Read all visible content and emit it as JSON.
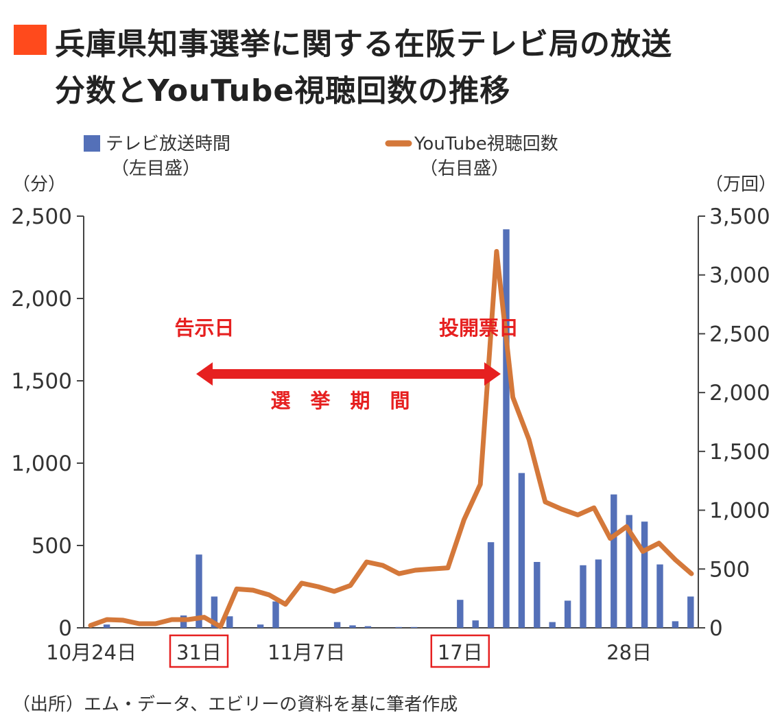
{
  "title_lines": [
    "兵庫県知事選挙に関する在阪テレビ局の放送",
    "分数とYouTube視聴回数の推移"
  ],
  "source": "（出所）エム・データ、エビリーの資料を基に筆者作成",
  "colors": {
    "title_marker": "#ff4a1c",
    "bar": "#5470b8",
    "line": "#d4783a",
    "annotation": "#e62020",
    "axis": "#444444"
  },
  "chart_data": {
    "type": "bar+line",
    "legend": [
      {
        "label": "テレビ放送時間",
        "sub": "（左目盛）",
        "mark": "bar"
      },
      {
        "label": "YouTube視聴回数",
        "sub": "（右目盛）",
        "mark": "line"
      }
    ],
    "left_unit": "（分）",
    "right_unit": "（万回）",
    "left_axis": {
      "min": 0,
      "max": 2500,
      "ticks": [
        0,
        500,
        1000,
        1500,
        2000,
        2500
      ],
      "tick_labels": [
        "0",
        "500",
        "1,000",
        "1,500",
        "2,000",
        "2,500"
      ]
    },
    "right_axis": {
      "min": 0,
      "max": 3500,
      "ticks": [
        0,
        500,
        1000,
        1500,
        2000,
        2500,
        3000,
        3500
      ],
      "tick_labels": [
        "0",
        "500",
        "1,000",
        "1,500",
        "2,000",
        "2,500",
        "3,000",
        "3,500"
      ]
    },
    "x_labels": [
      {
        "index": 0,
        "text": "10月24日",
        "boxed": false
      },
      {
        "index": 7,
        "text": "31日",
        "boxed": true
      },
      {
        "index": 14,
        "text": "11月7日",
        "boxed": false
      },
      {
        "index": 24,
        "text": "17日",
        "boxed": true
      },
      {
        "index": 35,
        "text": "28日",
        "boxed": false
      }
    ],
    "series": [
      {
        "name": "テレビ放送時間",
        "axis": "left",
        "kind": "bar",
        "values": [
          0,
          20,
          0,
          0,
          0,
          0,
          75,
          445,
          190,
          70,
          0,
          20,
          160,
          0,
          0,
          0,
          35,
          15,
          10,
          0,
          5,
          5,
          0,
          0,
          170,
          45,
          520,
          2420,
          940,
          400,
          35,
          165,
          380,
          415,
          810,
          685,
          645,
          385,
          40,
          190
        ]
      },
      {
        "name": "YouTube視聴回数",
        "axis": "right",
        "kind": "line",
        "values": [
          20,
          70,
          65,
          35,
          35,
          70,
          70,
          90,
          10,
          330,
          320,
          280,
          200,
          380,
          350,
          310,
          360,
          560,
          530,
          460,
          490,
          500,
          510,
          920,
          1220,
          3200,
          1960,
          1600,
          1070,
          1010,
          960,
          1020,
          760,
          860,
          650,
          720,
          580,
          460
        ]
      }
    ],
    "annotations": {
      "notice_day": "告示日",
      "voting_day": "投開票日",
      "period": "選　挙　期　間"
    }
  }
}
